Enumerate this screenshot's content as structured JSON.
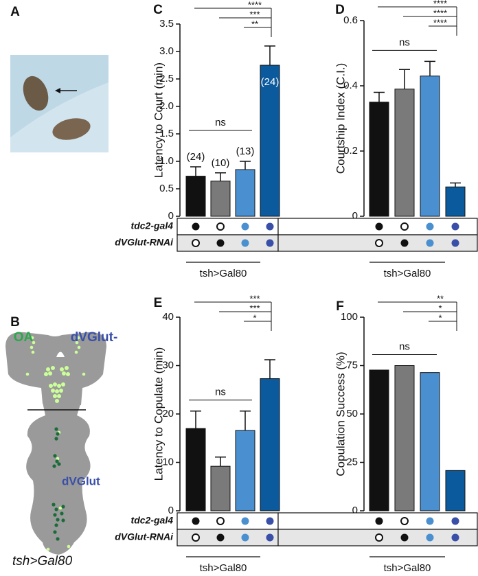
{
  "photo": {
    "panel": "A"
  },
  "diagram": {
    "panel": "B",
    "labels": {
      "oa": "OA",
      "vglut_minus": "dVGlut-",
      "vglut": "dVGlut",
      "genotype": "tsh>Gal80"
    }
  },
  "chart_data": [
    {
      "type": "bar",
      "panel": "C",
      "ylabel": "Latency to Court (min)",
      "values": [
        0.73,
        0.64,
        0.85,
        2.75
      ],
      "errors": [
        0.17,
        0.15,
        0.15,
        0.35
      ],
      "n_labels": [
        "(24)",
        "(10)",
        "(13)",
        "(24)"
      ],
      "colors": [
        "#111111",
        "#7a7a7a",
        "#4a90d0",
        "#0b5a9e"
      ],
      "ylim": [
        0,
        3.5
      ],
      "yticks": [
        0,
        0.5,
        {
          "value": 1,
          "label": "1.0"
        },
        1.5,
        {
          "value": 2,
          "label": "2.0"
        },
        2.5,
        {
          "value": 3,
          "label": "3.0"
        },
        3.5
      ],
      "significance": [
        {
          "from": 0,
          "to": 3,
          "label": "****"
        },
        {
          "from": 1,
          "to": 3,
          "label": "***"
        },
        {
          "from": 2,
          "to": 3,
          "label": "**"
        }
      ],
      "ns": {
        "from": 0,
        "to": 2,
        "label": "ns"
      },
      "genotype": {
        "row_labels": [
          "tdc2-gal4",
          "dVGlut-RNAi"
        ],
        "dots": [
          [
            "#111111",
            "open",
            "#4a90d0",
            "#3a4fa8"
          ],
          [
            "open",
            "#111111",
            "#4a90d0",
            "#3a4fa8"
          ]
        ],
        "bracket": {
          "from": 0,
          "to": 2,
          "label": "tsh>Gal80"
        }
      }
    },
    {
      "type": "bar",
      "panel": "D",
      "ylabel": "Courtship Index (C.I.)",
      "values": [
        0.35,
        0.39,
        0.43,
        0.09
      ],
      "errors": [
        0.03,
        0.06,
        0.045,
        0.012
      ],
      "colors": [
        "#111111",
        "#7a7a7a",
        "#4a90d0",
        "#0b5a9e"
      ],
      "ylim": [
        0,
        0.6
      ],
      "yticks": [
        0,
        0.2,
        0.4,
        0.6
      ],
      "significance": [
        {
          "from": 0,
          "to": 3,
          "label": "****"
        },
        {
          "from": 1,
          "to": 3,
          "label": "****"
        },
        {
          "from": 2,
          "to": 3,
          "label": "****"
        }
      ],
      "ns": {
        "from": 0,
        "to": 2,
        "label": "ns"
      },
      "genotype": {
        "dots": [
          [
            "#111111",
            "open",
            "#4a90d0",
            "#3a4fa8"
          ],
          [
            "open",
            "#111111",
            "#4a90d0",
            "#3a4fa8"
          ]
        ],
        "bracket": {
          "from": 0,
          "to": 2,
          "label": "tsh>Gal80"
        }
      }
    },
    {
      "type": "bar",
      "panel": "E",
      "ylabel": "Latency to Copulate (min)",
      "values": [
        17,
        9.2,
        16.6,
        27.3
      ],
      "errors": [
        3.6,
        1.9,
        4.0,
        3.9
      ],
      "colors": [
        "#111111",
        "#7a7a7a",
        "#4a90d0",
        "#0b5a9e"
      ],
      "ylim": [
        0,
        40
      ],
      "yticks": [
        0,
        10,
        20,
        30,
        40
      ],
      "significance": [
        {
          "from": 0,
          "to": 3,
          "label": "***"
        },
        {
          "from": 1,
          "to": 3,
          "label": "***"
        },
        {
          "from": 2,
          "to": 3,
          "label": "*"
        }
      ],
      "ns": {
        "from": 0,
        "to": 2,
        "label": "ns"
      },
      "genotype": {
        "row_labels": [
          "tdc2-gal4",
          "dVGlut-RNAi"
        ],
        "dots": [
          [
            "#111111",
            "open",
            "#4a90d0",
            "#3a4fa8"
          ],
          [
            "open",
            "#111111",
            "#4a90d0",
            "#3a4fa8"
          ]
        ],
        "bracket": {
          "from": 0,
          "to": 2,
          "label": "tsh>Gal80"
        }
      }
    },
    {
      "type": "bar",
      "panel": "F",
      "ylabel": "Copulation Success (%)",
      "values": [
        72.7,
        75,
        71.4,
        20.8
      ],
      "colors": [
        "#111111",
        "#7a7a7a",
        "#4a90d0",
        "#0b5a9e"
      ],
      "ylim": [
        0,
        100
      ],
      "yticks": [
        0,
        25,
        50,
        75,
        100
      ],
      "significance": [
        {
          "from": 0,
          "to": 3,
          "label": "**"
        },
        {
          "from": 1,
          "to": 3,
          "label": "*"
        },
        {
          "from": 2,
          "to": 3,
          "label": "*"
        }
      ],
      "ns": {
        "from": 0,
        "to": 2,
        "label": "ns"
      },
      "genotype": {
        "dots": [
          [
            "#111111",
            "open",
            "#4a90d0",
            "#3a4fa8"
          ],
          [
            "open",
            "#111111",
            "#4a90d0",
            "#3a4fa8"
          ]
        ],
        "bracket": {
          "from": 0,
          "to": 2,
          "label": "tsh>Gal80"
        }
      }
    }
  ]
}
